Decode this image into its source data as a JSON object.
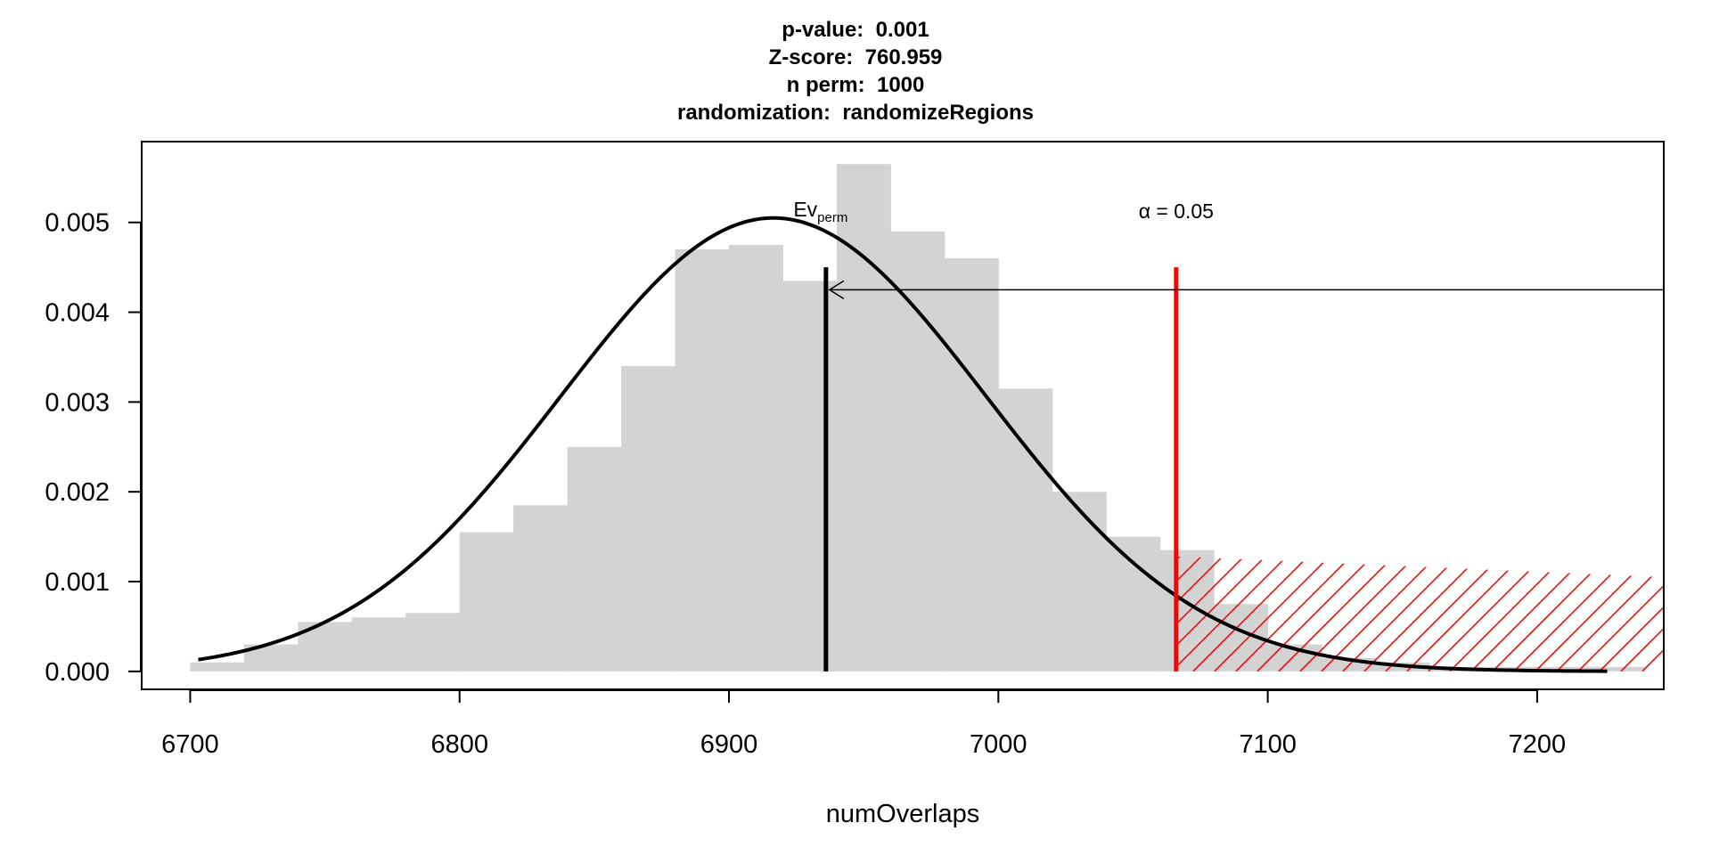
{
  "title_lines": [
    "p-value:  0.001",
    "Z-score:  760.959",
    "n perm:  1000",
    "randomization:  randomizeRegions"
  ],
  "chart_data": {
    "type": "bar",
    "title": "p-value:  0.001 / Z-score:  760.959 / n perm:  1000 / randomization:  randomizeRegions",
    "xlabel": "numOverlaps",
    "ylabel": "",
    "xlim": [
      6682,
      7247
    ],
    "ylim": [
      -0.0002,
      0.0059
    ],
    "x_ticks": [
      "6700",
      "6800",
      "6900",
      "7000",
      "7100",
      "7200"
    ],
    "y_ticks": [
      "0.000",
      "0.001",
      "0.002",
      "0.003",
      "0.004",
      "0.005"
    ],
    "grid": false,
    "histogram": {
      "bin_width": 20,
      "bin_starts": [
        6700,
        6720,
        6740,
        6760,
        6780,
        6800,
        6820,
        6840,
        6860,
        6880,
        6900,
        6920,
        6940,
        6960,
        6980,
        7000,
        7020,
        7040,
        7060,
        7080,
        7100,
        7120,
        7140,
        7160,
        7180,
        7200,
        7220
      ],
      "density": [
        0.0001,
        0.0003,
        0.00055,
        0.0006,
        0.00065,
        0.00155,
        0.00185,
        0.0025,
        0.0034,
        0.0047,
        0.00475,
        0.00435,
        0.00565,
        0.0049,
        0.0046,
        0.00315,
        0.002,
        0.0015,
        0.00135,
        0.00075,
        0.0003,
        0.00015,
        0.0001,
        5e-05,
        5e-05,
        5e-05,
        5e-05
      ],
      "color": "#d3d3d3"
    },
    "normal_curve": {
      "mean": 6916.5,
      "sd": 79,
      "x_from": 6703,
      "x_to": 7226,
      "color": "#000000"
    },
    "ev_perm": {
      "x": 6936,
      "label_main": "Ev",
      "label_sub": "perm"
    },
    "alpha_threshold": {
      "x": 7066,
      "label": "α = 0.05",
      "color": "#ff0000"
    },
    "evaluation_arrow": {
      "y": 0.00425
    },
    "critical_region": {
      "x_from": 7066,
      "x_to": 7247,
      "y_top_left": 0.00128,
      "y_top_right": 0.00105,
      "color": "#ff0000"
    }
  }
}
